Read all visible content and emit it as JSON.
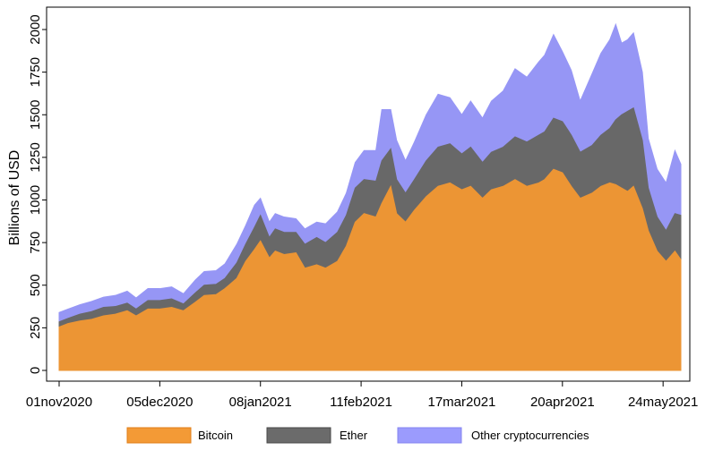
{
  "chart_data": {
    "type": "area",
    "stacked": true,
    "title": "",
    "xlabel": "",
    "ylabel": "Billions of USD",
    "ylim": [
      0,
      2100
    ],
    "yticks": [
      0,
      250,
      500,
      750,
      1000,
      1250,
      1500,
      1750,
      2000
    ],
    "xlim": [
      "2020-11-01",
      "2021-05-30"
    ],
    "xticks": [
      "01nov2020",
      "05dec2020",
      "08jan2021",
      "11feb2021",
      "17mar2021",
      "20apr2021",
      "24may2021"
    ],
    "grid": false,
    "legend_position": "bottom",
    "x": [
      "2020-11-01",
      "2020-11-04",
      "2020-11-08",
      "2020-11-12",
      "2020-11-16",
      "2020-11-20",
      "2020-11-24",
      "2020-11-27",
      "2020-12-01",
      "2020-12-05",
      "2020-12-09",
      "2020-12-13",
      "2020-12-17",
      "2020-12-20",
      "2020-12-24",
      "2020-12-27",
      "2020-12-31",
      "2021-01-03",
      "2021-01-06",
      "2021-01-08",
      "2021-01-11",
      "2021-01-13",
      "2021-01-16",
      "2021-01-20",
      "2021-01-23",
      "2021-01-27",
      "2021-01-30",
      "2021-02-03",
      "2021-02-06",
      "2021-02-09",
      "2021-02-12",
      "2021-02-16",
      "2021-02-18",
      "2021-02-21",
      "2021-02-23",
      "2021-02-26",
      "2021-03-01",
      "2021-03-05",
      "2021-03-09",
      "2021-03-13",
      "2021-03-17",
      "2021-03-20",
      "2021-03-24",
      "2021-03-27",
      "2021-03-31",
      "2021-04-04",
      "2021-04-08",
      "2021-04-12",
      "2021-04-14",
      "2021-04-17",
      "2021-04-20",
      "2021-04-23",
      "2021-04-26",
      "2021-04-30",
      "2021-05-03",
      "2021-05-06",
      "2021-05-08",
      "2021-05-10",
      "2021-05-12",
      "2021-05-14",
      "2021-05-17",
      "2021-05-19",
      "2021-05-22",
      "2021-05-25",
      "2021-05-28",
      "2021-05-30"
    ],
    "series": [
      {
        "name": "Bitcoin",
        "color": "#f39a36",
        "values": [
          255,
          275,
          290,
          300,
          320,
          330,
          350,
          320,
          360,
          360,
          370,
          350,
          400,
          440,
          445,
          480,
          540,
          640,
          710,
          760,
          660,
          700,
          680,
          690,
          600,
          620,
          600,
          640,
          730,
          870,
          920,
          900,
          980,
          1080,
          920,
          870,
          940,
          1020,
          1080,
          1100,
          1060,
          1080,
          1010,
          1060,
          1080,
          1120,
          1080,
          1100,
          1120,
          1180,
          1160,
          1080,
          1010,
          1040,
          1080,
          1100,
          1090,
          1070,
          1050,
          1080,
          950,
          820,
          700,
          640,
          700,
          650
        ]
      },
      {
        "name": "Ether",
        "color": "#6b6b6b",
        "values": [
          30,
          30,
          40,
          45,
          50,
          45,
          45,
          40,
          50,
          50,
          50,
          40,
          55,
          60,
          60,
          60,
          90,
          100,
          130,
          150,
          120,
          130,
          130,
          120,
          140,
          160,
          150,
          170,
          180,
          200,
          200,
          210,
          250,
          220,
          200,
          170,
          180,
          210,
          230,
          230,
          210,
          230,
          210,
          220,
          230,
          250,
          260,
          280,
          280,
          300,
          300,
          300,
          270,
          280,
          300,
          320,
          380,
          430,
          470,
          460,
          400,
          250,
          200,
          180,
          220,
          260
        ]
      },
      {
        "name": "Other cryptocurrencies",
        "color": "#9b9bfd",
        "values": [
          55,
          55,
          55,
          60,
          60,
          65,
          70,
          65,
          70,
          70,
          70,
          60,
          75,
          80,
          80,
          85,
          110,
          110,
          130,
          100,
          90,
          90,
          90,
          80,
          90,
          90,
          110,
          120,
          130,
          150,
          170,
          180,
          300,
          230,
          230,
          190,
          220,
          270,
          310,
          270,
          230,
          270,
          260,
          300,
          330,
          400,
          380,
          430,
          450,
          490,
          410,
          380,
          300,
          420,
          480,
          520,
          560,
          420,
          420,
          440,
          400,
          290,
          280,
          280,
          370,
          300
        ]
      }
    ]
  }
}
